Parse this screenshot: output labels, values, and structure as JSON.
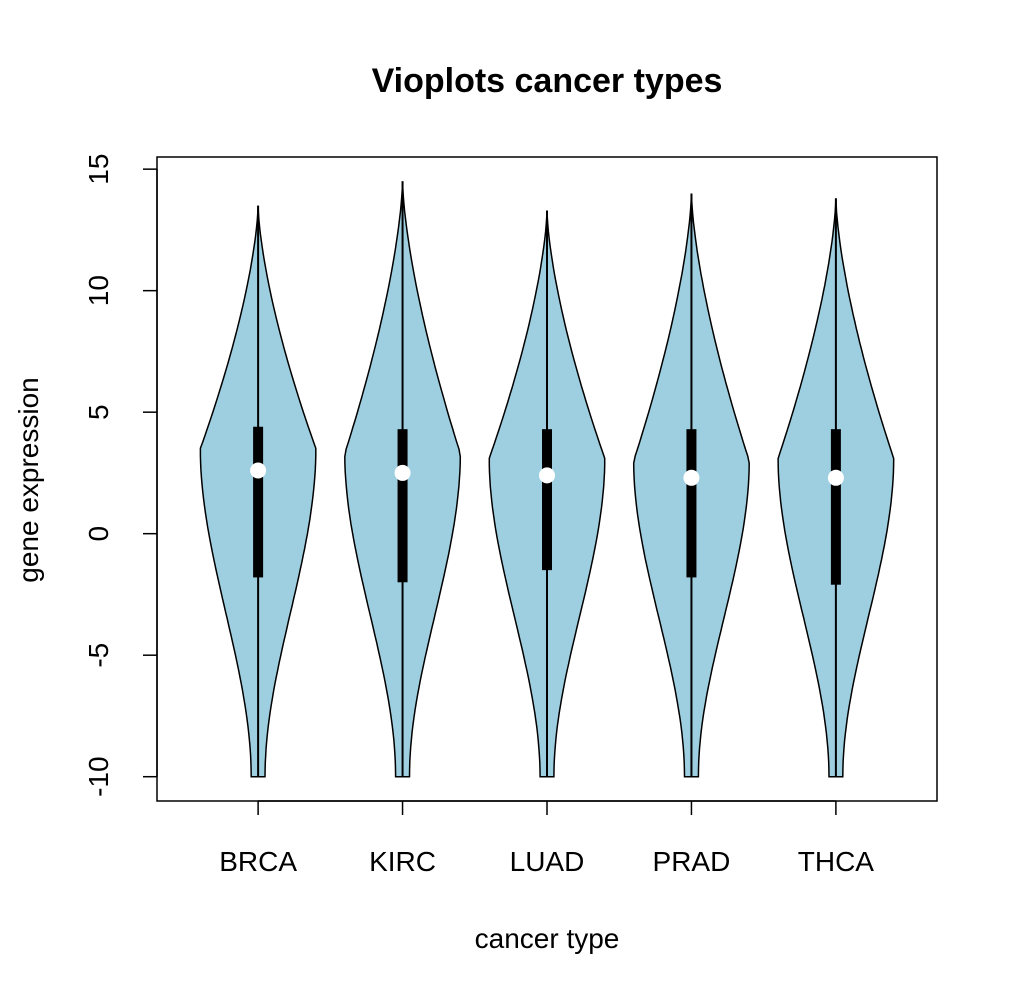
{
  "chart_data": {
    "type": "violin",
    "title": "Vioplots cancer types",
    "xlabel": "cancer type",
    "ylabel": "gene expression",
    "ylim": [
      -11,
      15.5
    ],
    "yticks": [
      -10,
      -5,
      0,
      5,
      10,
      15
    ],
    "ytick_labels": [
      "-10",
      "-5",
      "0",
      "5",
      "10",
      "15"
    ],
    "grid": false,
    "legend": "none",
    "fill_color": "#9ecfe1",
    "categories": [
      "BRCA",
      "KIRC",
      "LUAD",
      "PRAD",
      "THCA"
    ],
    "violins": [
      {
        "category": "BRCA",
        "min": -10,
        "max": 13.5,
        "q1": -1.8,
        "median": 2.6,
        "q3": 4.4,
        "mode": 3.5
      },
      {
        "category": "KIRC",
        "min": -10,
        "max": 14.5,
        "q1": -2.0,
        "median": 2.5,
        "q3": 4.3,
        "mode": 3.3
      },
      {
        "category": "LUAD",
        "min": -10,
        "max": 13.3,
        "q1": -1.5,
        "median": 2.4,
        "q3": 4.3,
        "mode": 3.1
      },
      {
        "category": "PRAD",
        "min": -10,
        "max": 14.0,
        "q1": -1.8,
        "median": 2.3,
        "q3": 4.3,
        "mode": 3.0
      },
      {
        "category": "THCA",
        "min": -10,
        "max": 13.8,
        "q1": -2.1,
        "median": 2.3,
        "q3": 4.3,
        "mode": 3.1
      }
    ]
  }
}
